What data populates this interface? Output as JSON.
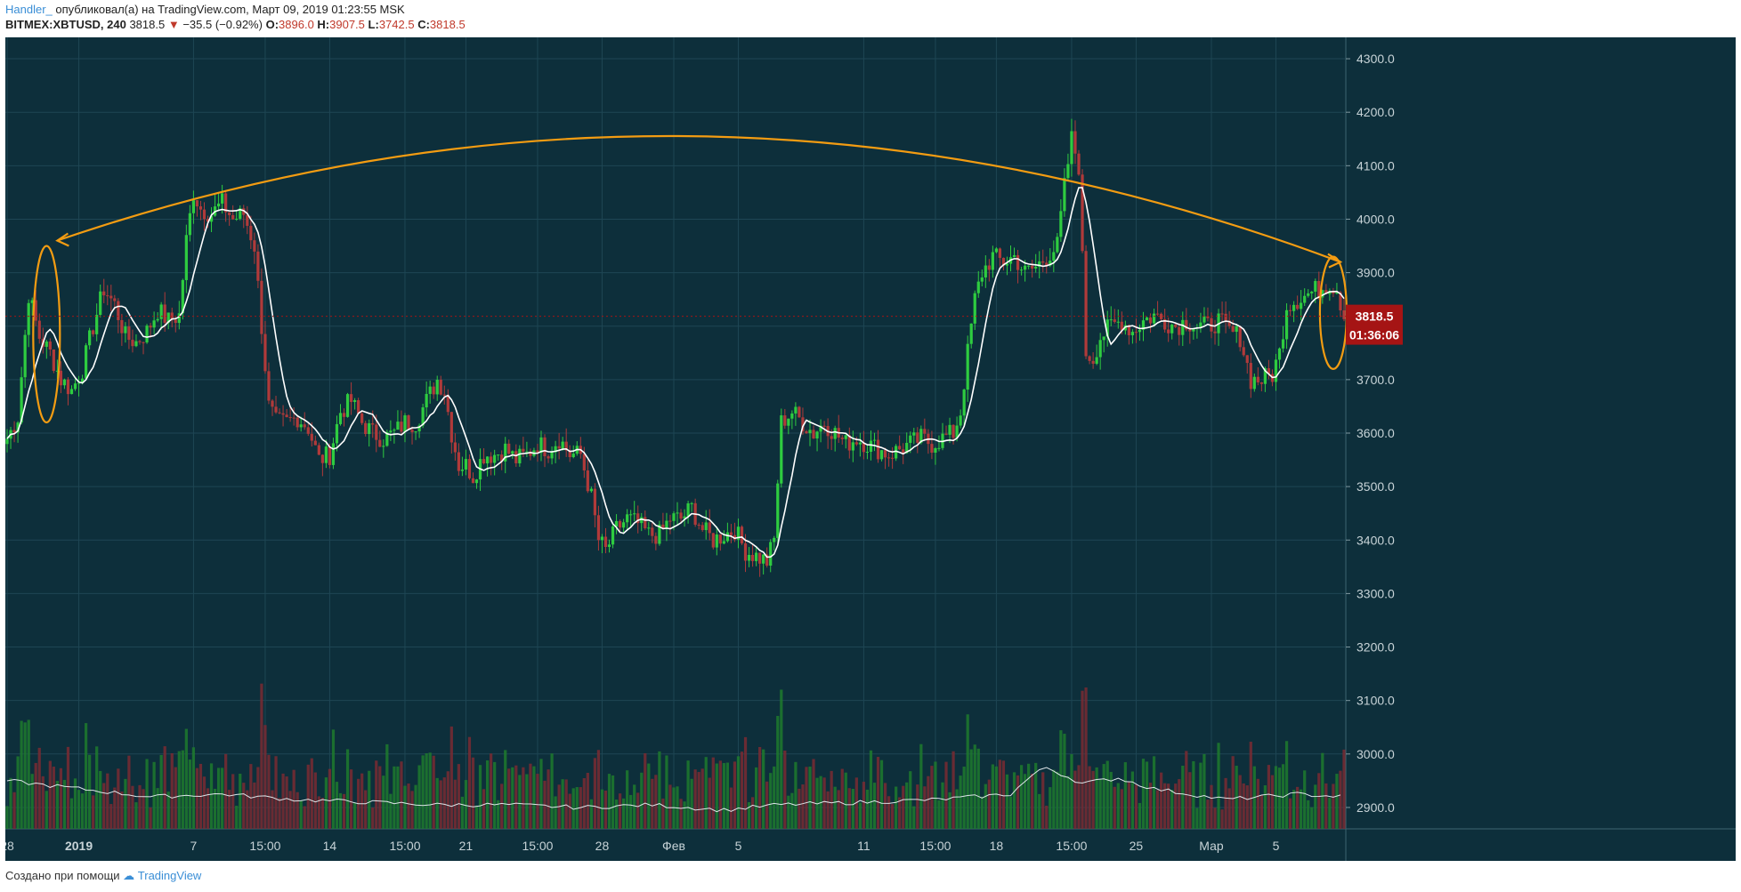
{
  "header": {
    "author": "Handler_",
    "published": "опубликовал(а) на TradingView.com, Март 09, 2019 01:23:55 MSK",
    "symbol": "BITMEX:XBTUSD, 240",
    "last": "3818.5",
    "change": "−35.5 (−0.92%)",
    "open_label": "O:",
    "open": "3896.0",
    "high_label": "H:",
    "high": "3907.5",
    "low_label": "L:",
    "low": "3742.5",
    "close_label": "C:",
    "close": "3818.5"
  },
  "footer": {
    "text": "Создано при помощи",
    "brand": "TradingView"
  },
  "colors": {
    "background": "#0d2f3b",
    "up": "#2ecc40",
    "down": "#b03a3a",
    "ma": "#ffffff",
    "annotation": "#f39c12",
    "price_tag": "#a51414",
    "grid": "#1e4654"
  },
  "chart_data": {
    "type": "candlestick",
    "y_axis": {
      "ticks": [
        2900,
        3000,
        3100,
        3200,
        3300,
        3400,
        3500,
        3600,
        3700,
        3800,
        3900,
        4000,
        4100,
        4200,
        4300
      ],
      "range": [
        2860,
        4340
      ],
      "side": "right"
    },
    "x_axis": {
      "tick_labels": [
        "28",
        "2019",
        "7",
        "15:00",
        "14",
        "15:00",
        "21",
        "15:00",
        "28",
        "Фев",
        "5",
        "11",
        "15:00",
        "18",
        "15:00",
        "25",
        "Мар",
        "5"
      ],
      "tick_positions": [
        0,
        20,
        52,
        72,
        90,
        111,
        128,
        148,
        166,
        186,
        204,
        239,
        259,
        276,
        297,
        315,
        336,
        354
      ]
    },
    "last_price_label": "3818.5",
    "countdown_label": "01:36:06",
    "price_path": [
      [
        0,
        3590
      ],
      [
        3,
        3630
      ],
      [
        6,
        3860
      ],
      [
        9,
        3780
      ],
      [
        12,
        3750
      ],
      [
        15,
        3700
      ],
      [
        18,
        3680
      ],
      [
        21,
        3720
      ],
      [
        24,
        3800
      ],
      [
        27,
        3870
      ],
      [
        30,
        3840
      ],
      [
        33,
        3780
      ],
      [
        36,
        3770
      ],
      [
        39,
        3790
      ],
      [
        42,
        3830
      ],
      [
        45,
        3810
      ],
      [
        48,
        3820
      ],
      [
        50,
        3960
      ],
      [
        52,
        4050
      ],
      [
        54,
        4020
      ],
      [
        57,
        4010
      ],
      [
        60,
        4030
      ],
      [
        63,
        4000
      ],
      [
        66,
        4010
      ],
      [
        69,
        3950
      ],
      [
        71,
        3800
      ],
      [
        73,
        3650
      ],
      [
        75,
        3620
      ],
      [
        78,
        3620
      ],
      [
        81,
        3630
      ],
      [
        84,
        3610
      ],
      [
        87,
        3550
      ],
      [
        90,
        3560
      ],
      [
        93,
        3640
      ],
      [
        96,
        3660
      ],
      [
        99,
        3620
      ],
      [
        102,
        3600
      ],
      [
        105,
        3590
      ],
      [
        108,
        3600
      ],
      [
        111,
        3620
      ],
      [
        114,
        3620
      ],
      [
        117,
        3660
      ],
      [
        120,
        3700
      ],
      [
        122,
        3680
      ],
      [
        124,
        3600
      ],
      [
        126,
        3540
      ],
      [
        128,
        3540
      ],
      [
        130,
        3520
      ],
      [
        133,
        3560
      ],
      [
        136,
        3560
      ],
      [
        139,
        3570
      ],
      [
        142,
        3550
      ],
      [
        145,
        3560
      ],
      [
        148,
        3580
      ],
      [
        151,
        3570
      ],
      [
        154,
        3590
      ],
      [
        157,
        3560
      ],
      [
        160,
        3560
      ],
      [
        163,
        3480
      ],
      [
        165,
        3400
      ],
      [
        167,
        3380
      ],
      [
        170,
        3420
      ],
      [
        173,
        3440
      ],
      [
        176,
        3430
      ],
      [
        179,
        3410
      ],
      [
        182,
        3410
      ],
      [
        185,
        3440
      ],
      [
        188,
        3440
      ],
      [
        191,
        3460
      ],
      [
        194,
        3420
      ],
      [
        197,
        3400
      ],
      [
        200,
        3410
      ],
      [
        203,
        3420
      ],
      [
        206,
        3380
      ],
      [
        209,
        3370
      ],
      [
        212,
        3360
      ],
      [
        214,
        3400
      ],
      [
        216,
        3620
      ],
      [
        219,
        3640
      ],
      [
        222,
        3620
      ],
      [
        225,
        3600
      ],
      [
        228,
        3620
      ],
      [
        231,
        3600
      ],
      [
        234,
        3580
      ],
      [
        237,
        3590
      ],
      [
        240,
        3580
      ],
      [
        243,
        3570
      ],
      [
        246,
        3560
      ],
      [
        249,
        3570
      ],
      [
        252,
        3580
      ],
      [
        255,
        3590
      ],
      [
        258,
        3580
      ],
      [
        261,
        3590
      ],
      [
        264,
        3600
      ],
      [
        266,
        3640
      ],
      [
        268,
        3750
      ],
      [
        270,
        3850
      ],
      [
        272,
        3900
      ],
      [
        275,
        3930
      ],
      [
        278,
        3920
      ],
      [
        281,
        3930
      ],
      [
        284,
        3900
      ],
      [
        287,
        3910
      ],
      [
        290,
        3930
      ],
      [
        293,
        3950
      ],
      [
        295,
        4060
      ],
      [
        297,
        4150
      ],
      [
        299,
        4100
      ],
      [
        301,
        3750
      ],
      [
        303,
        3740
      ],
      [
        305,
        3780
      ],
      [
        308,
        3800
      ],
      [
        311,
        3810
      ],
      [
        314,
        3790
      ],
      [
        317,
        3810
      ],
      [
        320,
        3820
      ],
      [
        323,
        3810
      ],
      [
        326,
        3800
      ],
      [
        329,
        3810
      ],
      [
        332,
        3800
      ],
      [
        335,
        3800
      ],
      [
        338,
        3810
      ],
      [
        341,
        3790
      ],
      [
        344,
        3780
      ],
      [
        347,
        3700
      ],
      [
        350,
        3700
      ],
      [
        353,
        3710
      ],
      [
        355,
        3750
      ],
      [
        357,
        3840
      ],
      [
        360,
        3850
      ],
      [
        363,
        3860
      ],
      [
        366,
        3870
      ],
      [
        369,
        3880
      ],
      [
        371,
        3870
      ],
      [
        373,
        3820
      ]
    ],
    "volume_ma_path": [
      [
        0,
        2950
      ],
      [
        20,
        2935
      ],
      [
        40,
        2920
      ],
      [
        60,
        2925
      ],
      [
        80,
        2915
      ],
      [
        100,
        2910
      ],
      [
        120,
        2905
      ],
      [
        140,
        2905
      ],
      [
        160,
        2900
      ],
      [
        180,
        2905
      ],
      [
        200,
        2895
      ],
      [
        215,
        2905
      ],
      [
        240,
        2910
      ],
      [
        260,
        2915
      ],
      [
        280,
        2925
      ],
      [
        286,
        2960
      ],
      [
        290,
        2975
      ],
      [
        300,
        2945
      ],
      [
        310,
        2955
      ],
      [
        320,
        2935
      ],
      [
        340,
        2915
      ],
      [
        360,
        2925
      ],
      [
        373,
        2920
      ]
    ],
    "bar_count": 374,
    "series": [
      {
        "name": "",
        "type": "candles"
      },
      {
        "name": "",
        "type": "moving-average"
      },
      {
        "name": "",
        "type": "volume"
      }
    ],
    "annotations": [
      {
        "type": "arc-arrow",
        "from_bar": 14,
        "to_bar": 372,
        "peak_price": 4155
      },
      {
        "type": "ellipse",
        "center_bar": 11,
        "price_top": 3950,
        "price_bottom": 3620
      },
      {
        "type": "ellipse",
        "center_bar": 370,
        "price_top": 3930,
        "price_bottom": 3720
      }
    ]
  }
}
